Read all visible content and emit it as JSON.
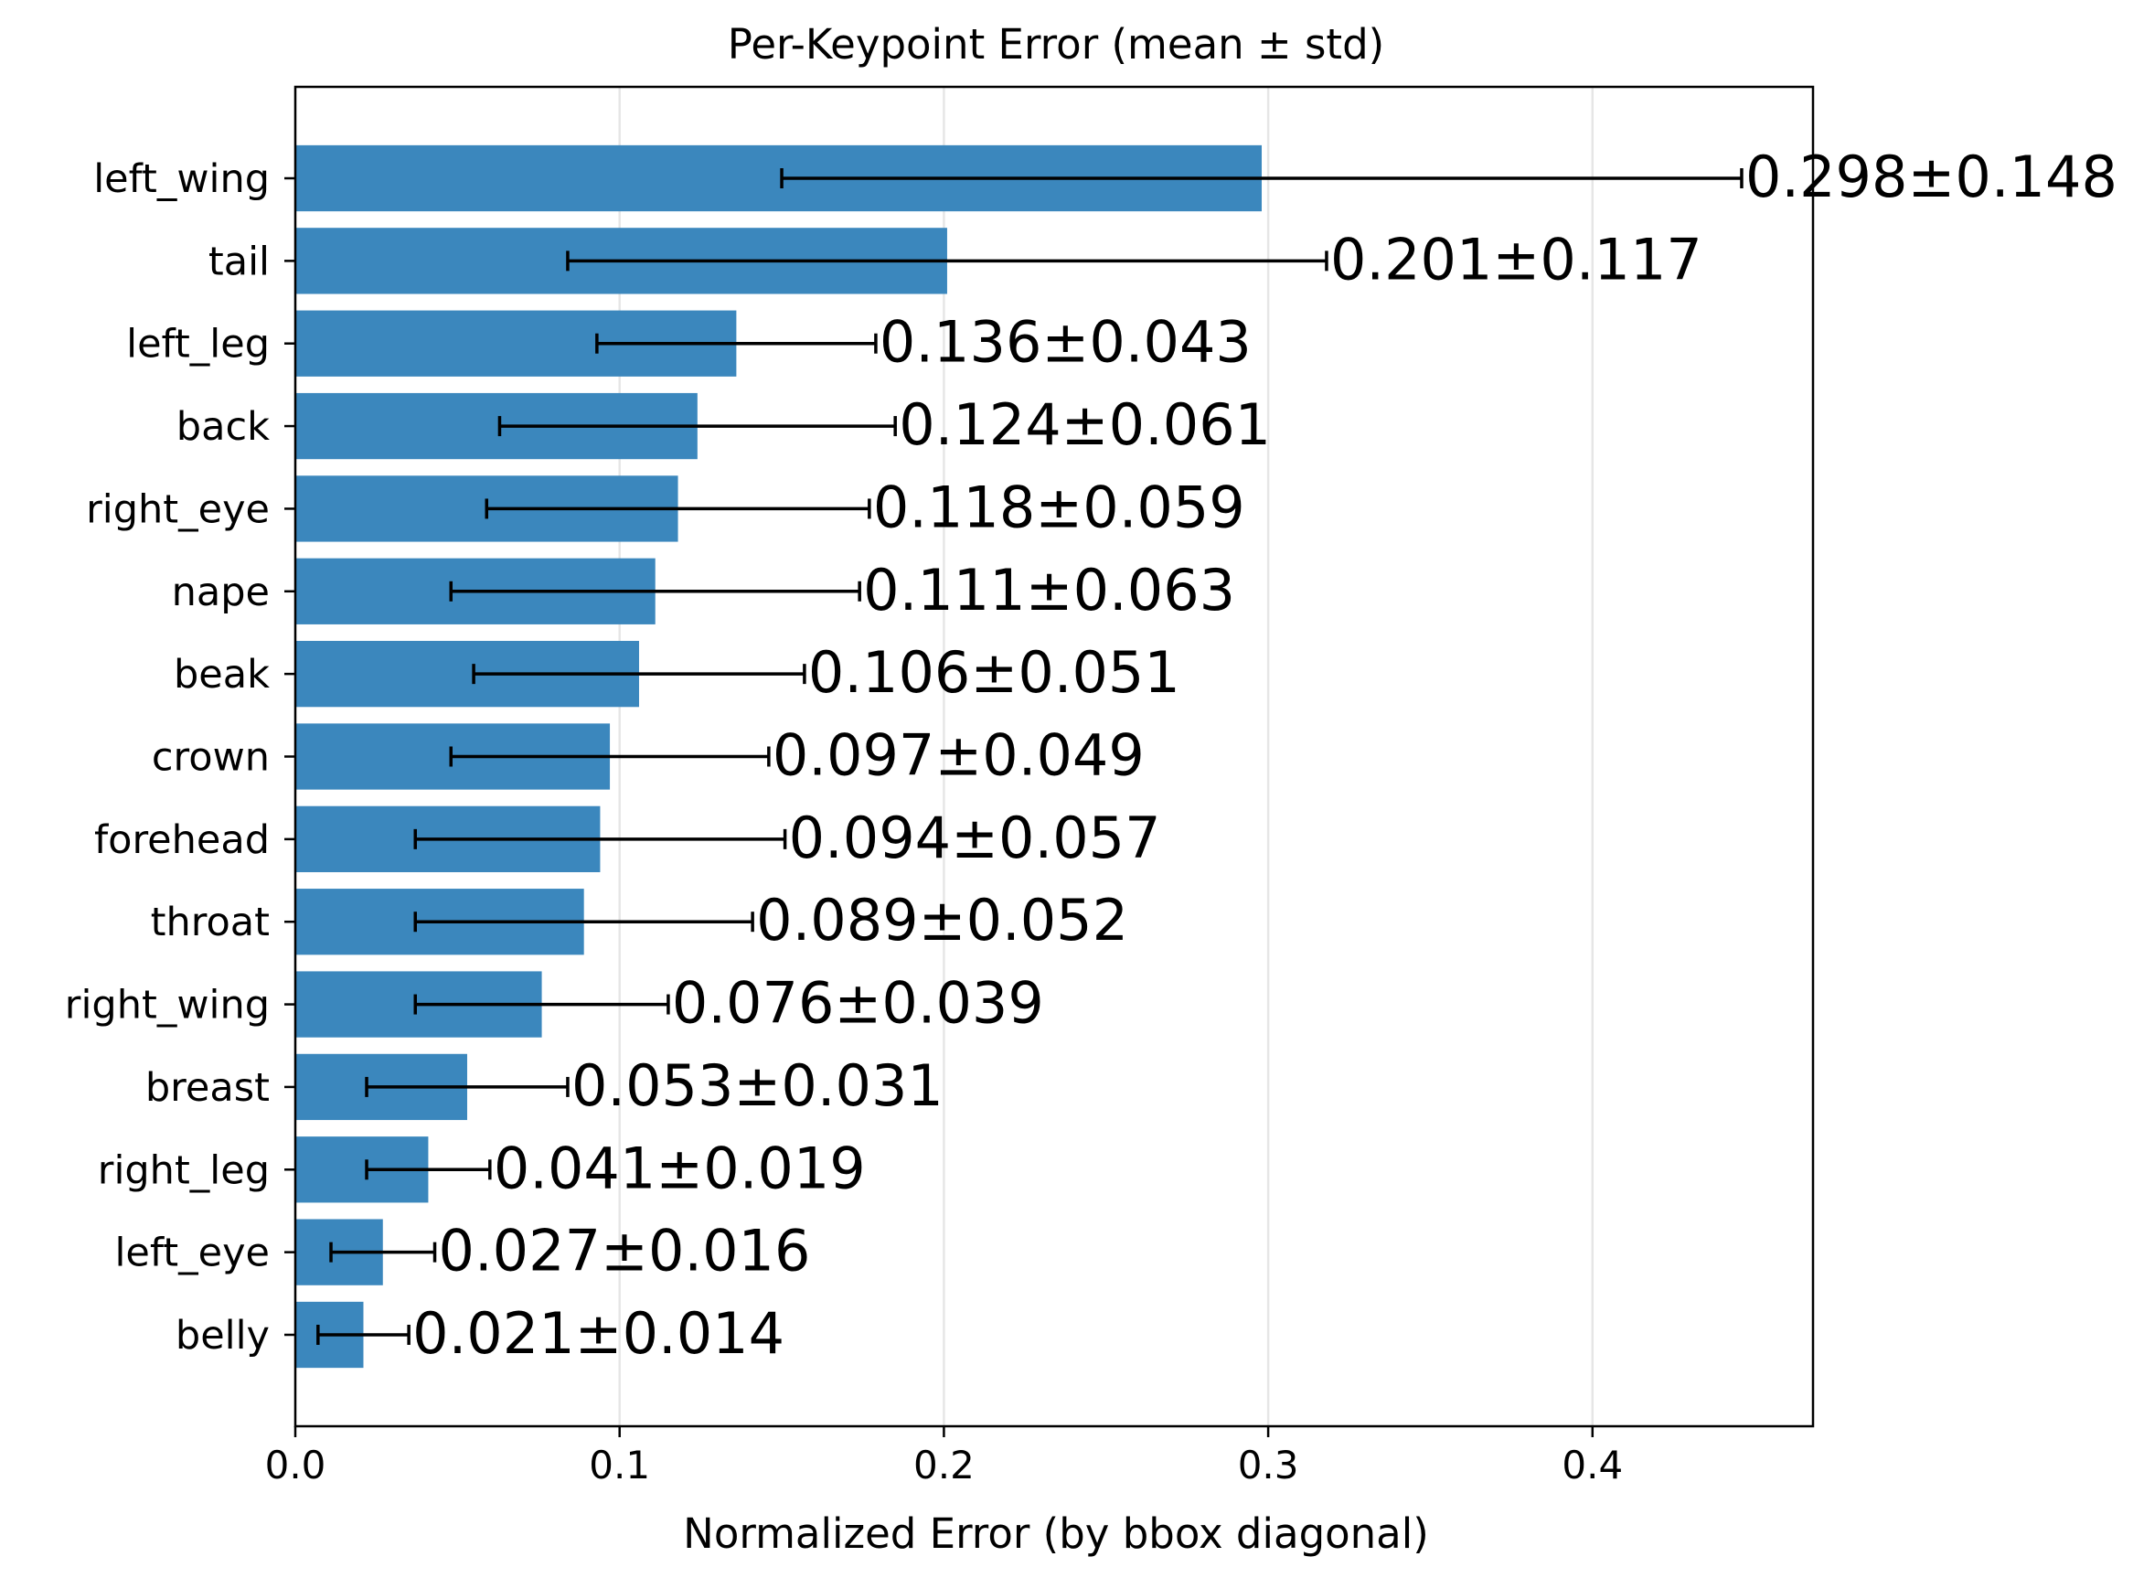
{
  "chart_data": {
    "type": "bar",
    "orientation": "horizontal",
    "title": "Per-Keypoint Error (mean ± std)",
    "xlabel": "Normalized Error (by bbox diagonal)",
    "ylabel": "",
    "xlim": [
      0,
      0.468
    ],
    "xticks": [
      "0.0",
      "0.1",
      "0.2",
      "0.3",
      "0.4"
    ],
    "xtick_values": [
      0.0,
      0.1,
      0.2,
      0.3,
      0.4
    ],
    "grid": "vertical",
    "bar_color": "#3b87bd",
    "error_bar_color": "#000000",
    "categories": [
      "left_wing",
      "tail",
      "left_leg",
      "back",
      "right_eye",
      "nape",
      "beak",
      "crown",
      "forehead",
      "throat",
      "right_wing",
      "breast",
      "right_leg",
      "left_eye",
      "belly"
    ],
    "values": [
      0.298,
      0.201,
      0.136,
      0.124,
      0.118,
      0.111,
      0.106,
      0.097,
      0.094,
      0.089,
      0.076,
      0.053,
      0.041,
      0.027,
      0.021
    ],
    "errors": [
      0.148,
      0.117,
      0.043,
      0.061,
      0.059,
      0.063,
      0.051,
      0.049,
      0.057,
      0.052,
      0.039,
      0.031,
      0.019,
      0.016,
      0.014
    ],
    "data_labels": [
      "0.298±0.148",
      "0.201±0.117",
      "0.136±0.043",
      "0.124±0.061",
      "0.118±0.059",
      "0.111±0.063",
      "0.106±0.051",
      "0.097±0.049",
      "0.094±0.057",
      "0.089±0.052",
      "0.076±0.039",
      "0.053±0.031",
      "0.041±0.019",
      "0.027±0.016",
      "0.021±0.014"
    ]
  }
}
